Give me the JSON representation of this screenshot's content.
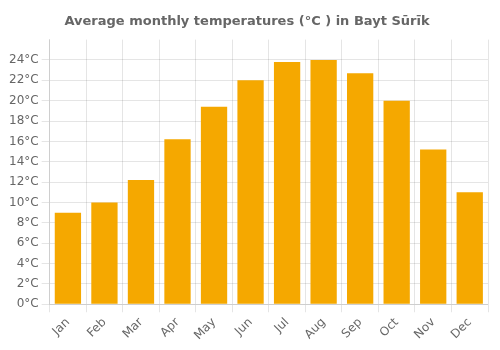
{
  "chart_data": {
    "type": "bar",
    "title": "Average monthly temperatures (°C ) in Bayt Sūrīk",
    "categories": [
      "Jan",
      "Feb",
      "Mar",
      "Apr",
      "May",
      "Jun",
      "Jul",
      "Aug",
      "Sep",
      "Oct",
      "Nov",
      "Dec"
    ],
    "values": [
      9,
      10,
      12.2,
      16.2,
      19.4,
      22,
      23.8,
      24,
      22.7,
      20,
      15.2,
      11
    ],
    "color": "#F5A800",
    "ylim": [
      0,
      26
    ],
    "yticks": [
      {
        "value": 0,
        "label": "0°C"
      },
      {
        "value": 2,
        "label": "2°C"
      },
      {
        "value": 4,
        "label": "4°C"
      },
      {
        "value": 6,
        "label": "6°C"
      },
      {
        "value": 8,
        "label": "8°C"
      },
      {
        "value": 10,
        "label": "10°C"
      },
      {
        "value": 12,
        "label": "12°C"
      },
      {
        "value": 14,
        "label": "14°C"
      },
      {
        "value": 16,
        "label": "16°C"
      },
      {
        "value": 18,
        "label": "18°C"
      },
      {
        "value": 20,
        "label": "20°C"
      },
      {
        "value": 22,
        "label": "22°C"
      },
      {
        "value": 24,
        "label": "24°C"
      }
    ],
    "grid": true
  }
}
